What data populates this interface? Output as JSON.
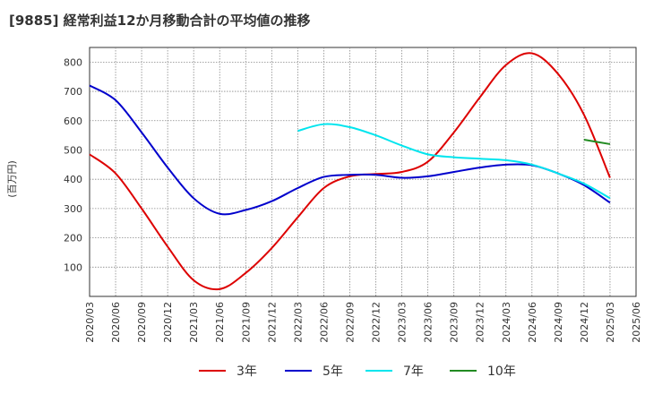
{
  "title": "[9885]  経常利益12か月移動合計の平均値の推移",
  "chart_data": {
    "type": "line",
    "title": "[9885]  経常利益12か月移動合計の平均値の推移",
    "xlabel": "",
    "ylabel": "(百万円)",
    "ylim": [
      0,
      850
    ],
    "yticks": [
      100,
      200,
      300,
      400,
      500,
      600,
      700,
      800
    ],
    "grid": true,
    "legend_position": "bottom",
    "x": [
      "2020/03",
      "2020/06",
      "2020/09",
      "2020/12",
      "2021/03",
      "2021/06",
      "2021/09",
      "2021/12",
      "2022/03",
      "2022/06",
      "2022/09",
      "2022/12",
      "2023/03",
      "2023/06",
      "2023/09",
      "2023/12",
      "2024/03",
      "2024/06",
      "2024/09",
      "2024/12",
      "2025/03",
      "2025/06"
    ],
    "series": [
      {
        "name": "3年",
        "color": "#dd0000",
        "values": [
          485,
          420,
          300,
          170,
          55,
          25,
          80,
          165,
          270,
          370,
          410,
          418,
          425,
          460,
          560,
          680,
          790,
          830,
          760,
          620,
          405,
          null
        ]
      },
      {
        "name": "5年",
        "color": "#0000cc",
        "values": [
          720,
          670,
          560,
          440,
          335,
          282,
          295,
          325,
          370,
          408,
          415,
          415,
          405,
          410,
          425,
          440,
          450,
          448,
          420,
          380,
          320,
          null
        ]
      },
      {
        "name": "7年",
        "color": "#00e5ee",
        "values": [
          null,
          null,
          null,
          null,
          null,
          null,
          null,
          null,
          565,
          588,
          578,
          550,
          515,
          485,
          475,
          470,
          465,
          450,
          420,
          385,
          335,
          null
        ]
      },
      {
        "name": "10年",
        "color": "#228b22",
        "values": [
          null,
          null,
          null,
          null,
          null,
          null,
          null,
          null,
          null,
          null,
          null,
          null,
          null,
          null,
          null,
          null,
          null,
          null,
          null,
          535,
          520,
          null
        ]
      }
    ]
  }
}
